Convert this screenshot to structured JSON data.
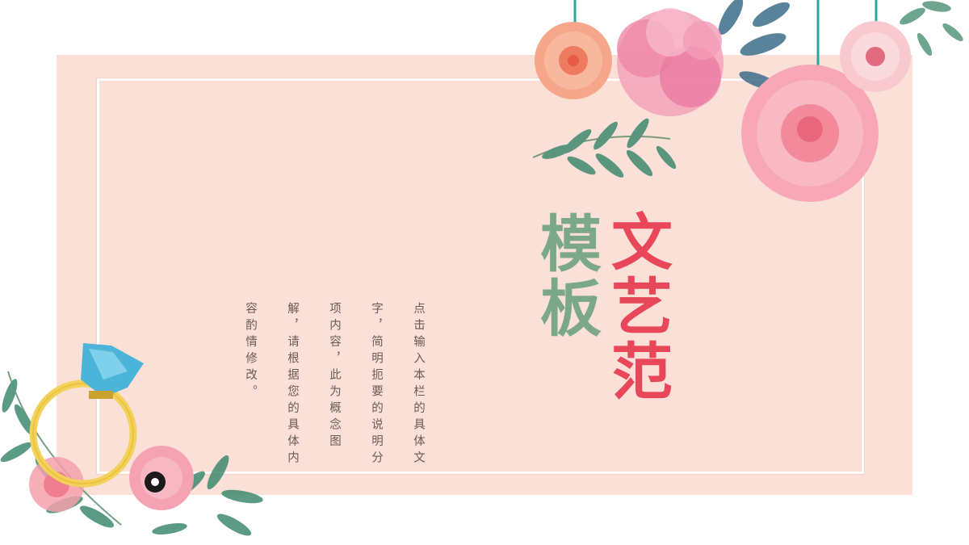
{
  "title": {
    "line1": "文艺范",
    "line2": "模板"
  },
  "body_text": "点击输入本栏的具体文字，简明扼要的说明分项内容，此为概念图解，请根据您的具体内容酌情修改。",
  "colors": {
    "panel_bg": "#fbe0d7",
    "title_red": "#e8475a",
    "title_green": "#7ba88b",
    "body_text": "#6a5a55"
  }
}
